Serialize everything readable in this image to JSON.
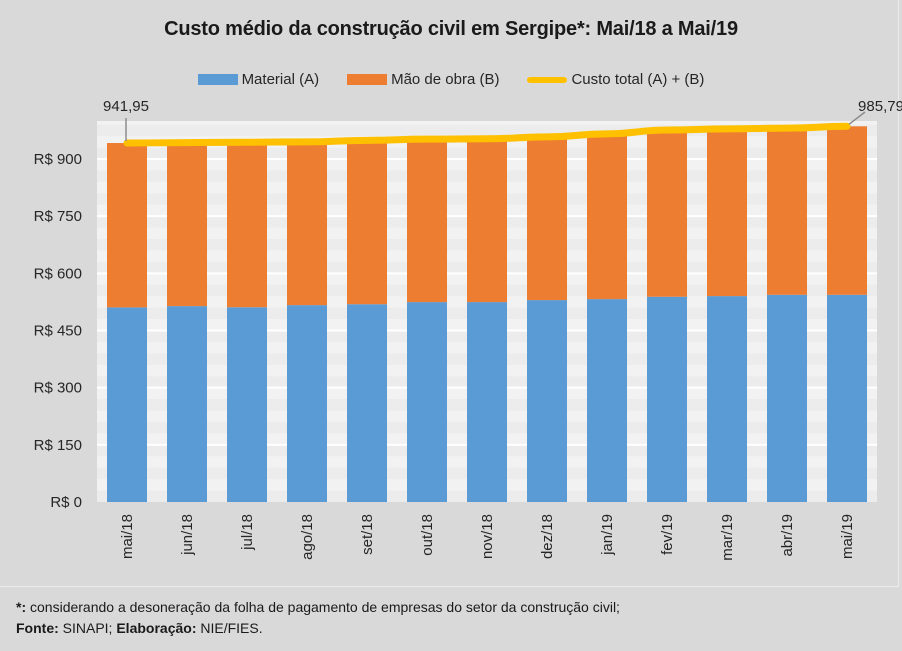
{
  "chart_data": {
    "type": "bar",
    "stacked": true,
    "title": "Custo médio da construção civil em Sergipe*: Mai/18 a Mai/19",
    "xlabel": "",
    "ylabel": "",
    "ylim": [
      0,
      990
    ],
    "yticks": [
      0,
      150,
      300,
      450,
      600,
      750,
      900
    ],
    "ytick_labels": [
      "R$ 0",
      "R$ 150",
      "R$ 300",
      "R$ 450",
      "R$ 600",
      "R$ 750",
      "R$ 900"
    ],
    "grid": true,
    "legend_position": "top",
    "categories": [
      "mai/18",
      "jun/18",
      "jul/18",
      "ago/18",
      "set/18",
      "out/18",
      "nov/18",
      "dez/18",
      "jan/19",
      "fev/19",
      "mar/19",
      "abr/19",
      "mai/19"
    ],
    "series": [
      {
        "name": "Material (A)",
        "type": "bar",
        "color": "#5b9bd5",
        "values": [
          510.6,
          514.0,
          511.0,
          516.6,
          519.0,
          524.5,
          524.5,
          529.8,
          532.4,
          538.5,
          540.3,
          543.7,
          543.7
        ]
      },
      {
        "name": "Mão de obra (B)",
        "type": "bar",
        "color": "#ed7d31",
        "values": [
          431.35,
          429.0,
          433.0,
          428.4,
          430.0,
          427.5,
          428.5,
          428.2,
          433.6,
          437.5,
          438.7,
          437.3,
          442.09
        ]
      },
      {
        "name": "Custo total (A) + (B)",
        "type": "line",
        "color": "#ffc000",
        "values": [
          941.95,
          943.0,
          944.0,
          945.0,
          949.0,
          952.0,
          953.0,
          958.0,
          966.0,
          976.0,
          979.0,
          981.0,
          985.79
        ]
      }
    ],
    "annotations": [
      {
        "category": "mai/18",
        "series": "Custo total (A) + (B)",
        "label": "941,95"
      },
      {
        "category": "mai/19",
        "series": "Custo total (A) + (B)",
        "label": "985,79"
      }
    ]
  },
  "footer": {
    "note_prefix": "*:",
    "note_text": " considerando a desoneração da folha de pagamento de empresas do setor da construção civil;",
    "source_label": "Fonte:",
    "source_text": " SINAPI; ",
    "elab_label": "Elaboração:",
    "elab_text": " NIE/FIES."
  }
}
